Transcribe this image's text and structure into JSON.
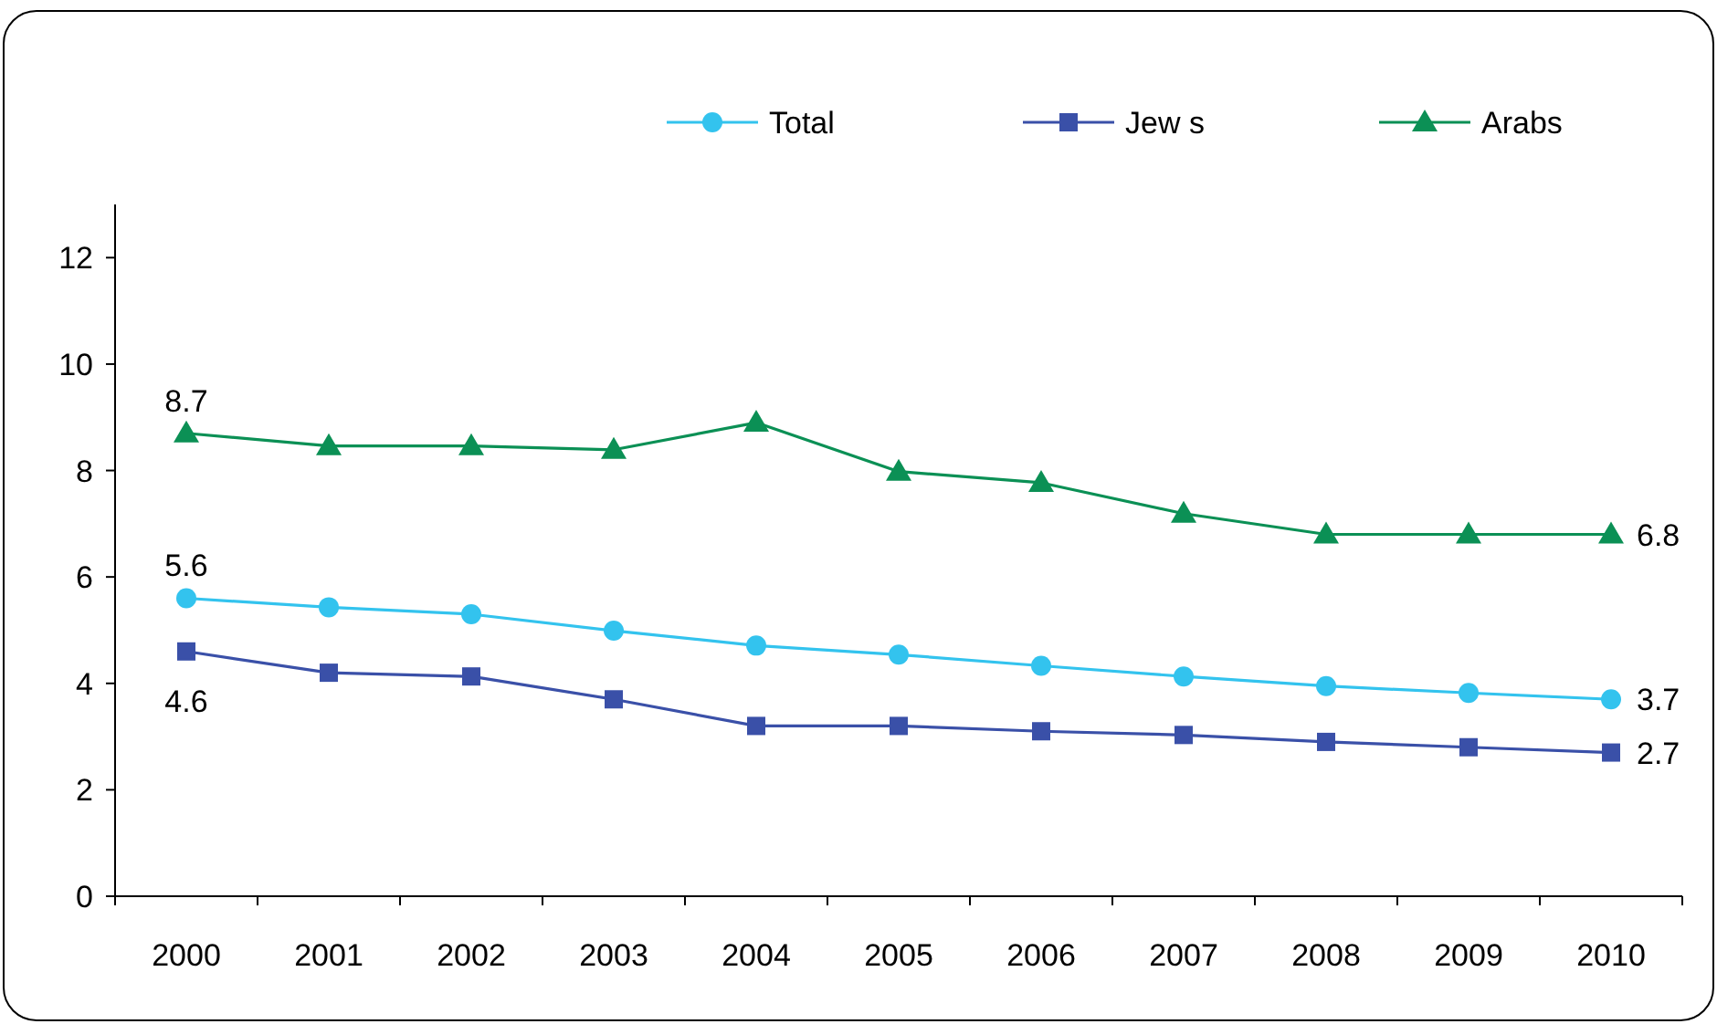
{
  "chart_data": {
    "type": "line",
    "categories": [
      "2000",
      "2001",
      "2002",
      "2003",
      "2004",
      "2005",
      "2006",
      "2007",
      "2008",
      "2009",
      "2010"
    ],
    "ylim": [
      0,
      13
    ],
    "yticks": [
      0,
      2,
      4,
      6,
      8,
      10,
      12
    ],
    "grid": false,
    "legend": "top right",
    "series": [
      {
        "name": "Total",
        "color": "#33c3ee",
        "marker": "circle",
        "values": [
          5.6,
          5.43,
          5.3,
          4.99,
          4.71,
          4.54,
          4.33,
          4.13,
          3.95,
          3.82,
          3.7
        ],
        "value_labels": [
          "5.6",
          null,
          null,
          null,
          null,
          null,
          null,
          null,
          null,
          null,
          "3.7"
        ]
      },
      {
        "name": "Jew s",
        "color": "#3a50a8",
        "marker": "square",
        "values": [
          4.6,
          4.2,
          4.13,
          3.7,
          3.2,
          3.2,
          3.1,
          3.03,
          2.9,
          2.8,
          2.7
        ],
        "value_labels": [
          "4.6",
          null,
          null,
          null,
          null,
          null,
          null,
          null,
          null,
          null,
          "2.7"
        ]
      },
      {
        "name": "Arabs",
        "color": "#0b9055",
        "marker": "triangle",
        "values": [
          8.7,
          8.46,
          8.46,
          8.39,
          8.9,
          7.98,
          7.77,
          7.19,
          6.8,
          6.8,
          6.8
        ],
        "value_labels": [
          "8.7",
          null,
          null,
          null,
          null,
          null,
          null,
          null,
          null,
          null,
          "6.8"
        ]
      }
    ]
  }
}
